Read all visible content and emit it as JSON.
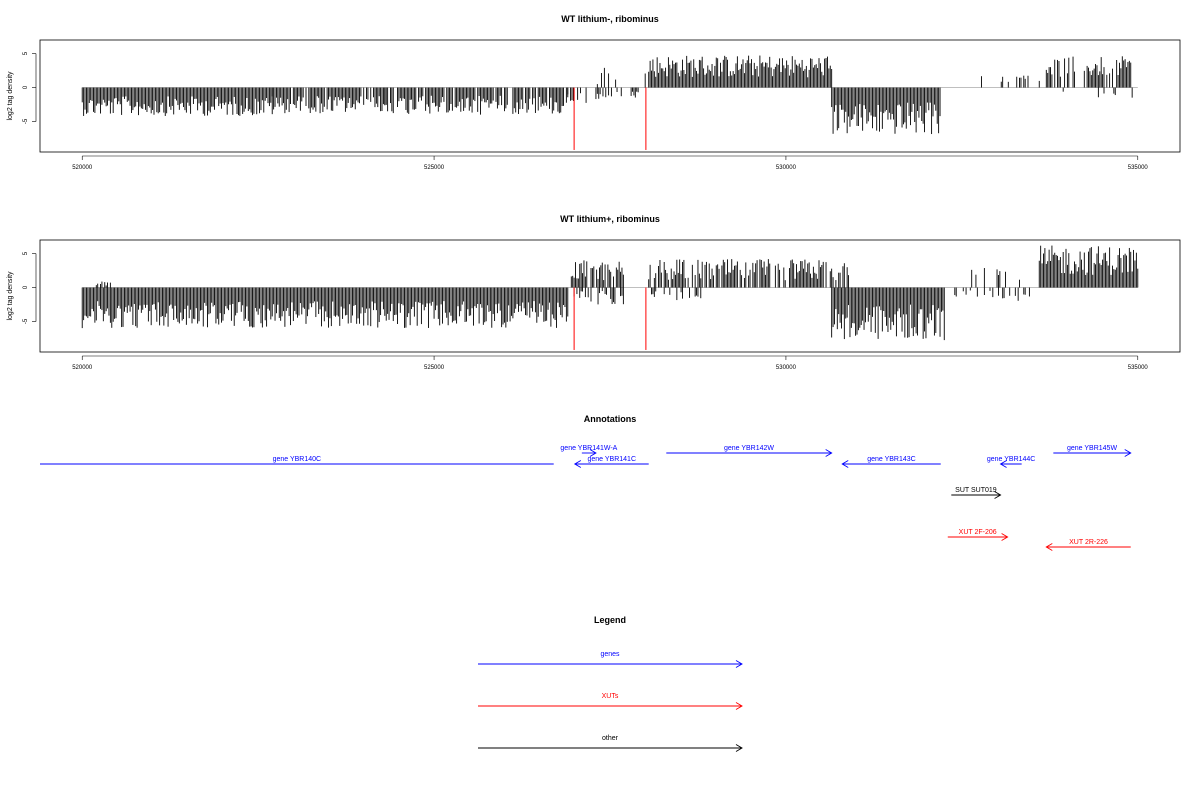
{
  "chart_data": [
    {
      "type": "bar",
      "title": "WT lithium-, ribominus",
      "ylabel": "log2 tag density",
      "xlim": [
        519400,
        535600
      ],
      "ylim": [
        -9.5,
        7
      ],
      "xticks": [
        520000,
        525000,
        530000,
        535000
      ],
      "yticks": [
        5,
        0,
        -5
      ],
      "series": [
        {
          "x_range": [
            520000,
            522700
          ],
          "sign": -1,
          "amp": [
            1.3,
            4.2
          ],
          "density": 1.0
        },
        {
          "x_range": [
            522700,
            524300
          ],
          "sign": -1,
          "amp": [
            1.2,
            3.8
          ],
          "density": 0.85
        },
        {
          "x_range": [
            524300,
            526900
          ],
          "sign": -1,
          "amp": [
            1.2,
            4.0
          ],
          "density": 0.9
        },
        {
          "x_range": [
            526900,
            527300
          ],
          "sign": -1,
          "amp": [
            0.8,
            2.4
          ],
          "density": 0.45
        },
        {
          "x_range": [
            527300,
            528000
          ],
          "sign": 1,
          "amp": [
            0.5,
            3.5
          ],
          "density": 0.15
        },
        {
          "x_range": [
            527300,
            528000
          ],
          "sign": -1,
          "amp": [
            0.6,
            1.8
          ],
          "density": 0.3
        },
        {
          "x_range": [
            528050,
            530650
          ],
          "sign": 1,
          "amp": [
            1.5,
            4.8
          ],
          "density": 1.0
        },
        {
          "x_range": [
            530650,
            532200
          ],
          "sign": -1,
          "amp": [
            2.2,
            7.0
          ],
          "density": 1.0
        },
        {
          "x_range": [
            532600,
            533600
          ],
          "sign": 1,
          "amp": [
            0.8,
            1.8
          ],
          "density": 0.06
        },
        {
          "x_range": [
            533700,
            534900
          ],
          "sign": 1,
          "amp": [
            1.5,
            4.6
          ],
          "density": 0.7
        },
        {
          "x_range": [
            533700,
            535000
          ],
          "sign": -1,
          "amp": [
            0.4,
            2.0
          ],
          "density": 0.1
        }
      ],
      "marker_lines": [
        {
          "x": 526990,
          "ymin": -9.2
        },
        {
          "x": 528010,
          "ymin": -9.2
        }
      ]
    },
    {
      "type": "bar",
      "title": "WT lithium+, ribominus",
      "ylabel": "log2 tag density",
      "xlim": [
        519400,
        535600
      ],
      "ylim": [
        -9.5,
        7
      ],
      "xticks": [
        520000,
        525000,
        530000,
        535000
      ],
      "yticks": [
        5,
        0,
        -5
      ],
      "series": [
        {
          "x_range": [
            520000,
            526900
          ],
          "sign": -1,
          "amp": [
            2.0,
            6.0
          ],
          "density": 1.0
        },
        {
          "x_range": [
            520200,
            520400
          ],
          "sign": 1,
          "amp": [
            0.3,
            0.9
          ],
          "density": 0.5
        },
        {
          "x_range": [
            526950,
            527700
          ],
          "sign": 1,
          "amp": [
            1.0,
            4.0
          ],
          "density": 0.9
        },
        {
          "x_range": [
            526950,
            527700
          ],
          "sign": -1,
          "amp": [
            0.5,
            2.5
          ],
          "density": 0.5
        },
        {
          "x_range": [
            528050,
            530900
          ],
          "sign": 1,
          "amp": [
            1.0,
            4.2
          ],
          "density": 0.8
        },
        {
          "x_range": [
            528050,
            528800
          ],
          "sign": -1,
          "amp": [
            0.4,
            2.0
          ],
          "density": 0.4
        },
        {
          "x_range": [
            530650,
            532250
          ],
          "sign": -1,
          "amp": [
            2.5,
            7.8
          ],
          "density": 1.0
        },
        {
          "x_range": [
            532400,
            533500
          ],
          "sign": 1,
          "amp": [
            0.8,
            3.2
          ],
          "density": 0.25
        },
        {
          "x_range": [
            532400,
            533500
          ],
          "sign": -1,
          "amp": [
            0.4,
            2.0
          ],
          "density": 0.2
        },
        {
          "x_range": [
            533600,
            535000
          ],
          "sign": 1,
          "amp": [
            1.8,
            6.2
          ],
          "density": 1.0
        }
      ],
      "marker_lines": [
        {
          "x": 526990,
          "ymin": -9.2
        },
        {
          "x": 528010,
          "ymin": -9.2
        }
      ]
    }
  ],
  "annotations": {
    "title": "Annotations",
    "colors": {
      "genes": "#0000ff",
      "xuts": "#ff0000",
      "other": "#000000"
    },
    "xlim": [
      519400,
      535600
    ],
    "features": [
      {
        "label": "gene YBR140C",
        "start": 519400,
        "end": 526700,
        "strand": "-",
        "kind": "genes",
        "row": 2,
        "arrow": false
      },
      {
        "label": "gene YBR141W-A",
        "start": 527100,
        "end": 527300,
        "strand": "+",
        "kind": "genes",
        "row": 1
      },
      {
        "label": "gene YBR141C",
        "start": 527000,
        "end": 528050,
        "strand": "-",
        "kind": "genes",
        "row": 2
      },
      {
        "label": "gene YBR142W",
        "start": 528300,
        "end": 530650,
        "strand": "+",
        "kind": "genes",
        "row": 1
      },
      {
        "label": "gene YBR143C",
        "start": 530800,
        "end": 532200,
        "strand": "-",
        "kind": "genes",
        "row": 2
      },
      {
        "label": "gene YBR144C",
        "start": 533050,
        "end": 533350,
        "strand": "-",
        "kind": "genes",
        "row": 2
      },
      {
        "label": "gene YBR145W",
        "start": 533800,
        "end": 534900,
        "strand": "+",
        "kind": "genes",
        "row": 1
      },
      {
        "label": "SUT SUT019",
        "start": 532350,
        "end": 533050,
        "strand": "+",
        "kind": "other",
        "row": 3
      },
      {
        "label": "XUT 2F-206",
        "start": 532300,
        "end": 533150,
        "strand": "+",
        "kind": "xuts",
        "row": 4
      },
      {
        "label": "XUT 2R-226",
        "start": 533700,
        "end": 534900,
        "strand": "-",
        "kind": "xuts",
        "row": 5
      }
    ]
  },
  "legend": {
    "title": "Legend",
    "items": [
      {
        "label": "genes",
        "color": "#0000ff"
      },
      {
        "label": "XUTs",
        "color": "#ff0000"
      },
      {
        "label": "other",
        "color": "#000000"
      }
    ]
  }
}
